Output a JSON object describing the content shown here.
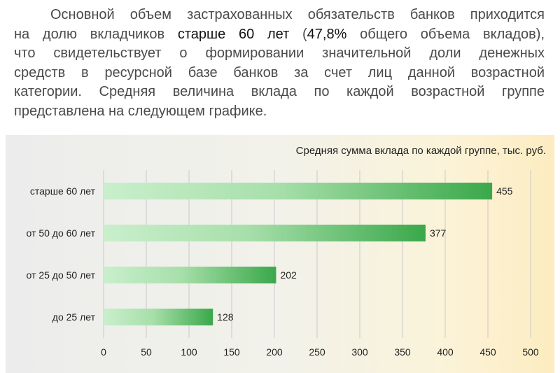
{
  "paragraph": {
    "line1": "Основной объем застрахованных обязательств банков приходится",
    "line2_a": "на долю вкладчиков ",
    "line2_b": "старше 60 лет",
    "line2_c": " (",
    "line2_d": "47,8%",
    "line2_e": " общего объема вкладов),",
    "line3": "что свидетельствует о формировании значительной доли денежных",
    "line4": "средств в ресурсной базе банков за счет лиц данной возрастной",
    "line5": "категории. Средняя величина вклада по каждой возрастной группе",
    "line6": "представлена на следующем графике."
  },
  "colors": {
    "bar_start": "#c9efcc",
    "bar_end": "#3aa84a",
    "grid": "#c8c8c8"
  },
  "chart_data": {
    "type": "bar",
    "orientation": "horizontal",
    "title": "Средняя сумма вклада по каждой группе, тыс. руб.",
    "categories": [
      "старше 60 лет",
      "от 50 до 60 лет",
      "от 25 до 50 лет",
      "до 25 лет"
    ],
    "values": [
      455,
      377,
      202,
      128
    ],
    "xlim": [
      0,
      500
    ],
    "xticks": [
      0,
      50,
      100,
      150,
      200,
      250,
      300,
      350,
      400,
      450,
      500
    ],
    "grid": true,
    "xlabel": "",
    "ylabel": ""
  }
}
